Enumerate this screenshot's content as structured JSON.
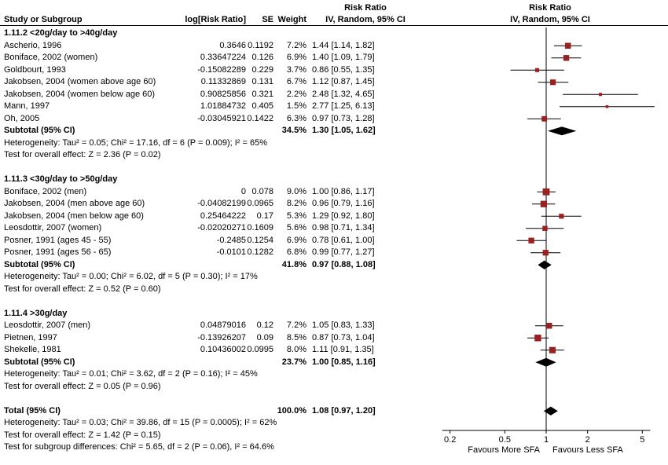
{
  "header": {
    "col_study": "Study or Subgroup",
    "col_logrr": "log[Risk Ratio]",
    "col_se": "SE",
    "col_weight": "Weight",
    "col_ci_line1": "Risk Ratio",
    "col_ci_line2": "IV, Random, 95% CI",
    "plot_line1": "Risk Ratio",
    "plot_line2": "IV, Random, 95% CI"
  },
  "chart_data": {
    "type": "forest",
    "x_scale": "log",
    "xlim": [
      0.2,
      5
    ],
    "axis_ticks": [
      0.2,
      0.5,
      1,
      2,
      5
    ],
    "axis_labels": [
      "0.2",
      "0.5",
      "1",
      "2",
      "5"
    ],
    "favours_left": "Favours More SFA",
    "favours_right": "Favours Less SFA",
    "marker_color": "#992121",
    "line_color": "#000000",
    "groups": [
      {
        "title": "1.11.2 <20g/day to >40g/day",
        "studies": [
          {
            "name": "Ascherio, 1996",
            "log_rr": "0.3646",
            "se": "0.1192",
            "weight": "7.2%",
            "ci": "1.44 [1.14, 1.82]",
            "rr": 1.44,
            "lo": 1.14,
            "hi": 1.82,
            "w": 7.2
          },
          {
            "name": "Boniface, 2002 (women)",
            "log_rr": "0.33647224",
            "se": "0.126",
            "weight": "6.9%",
            "ci": "1.40 [1.09, 1.79]",
            "rr": 1.4,
            "lo": 1.09,
            "hi": 1.79,
            "w": 6.9
          },
          {
            "name": "Goldbourt, 1993",
            "log_rr": "-0.15082289",
            "se": "0.229",
            "weight": "3.7%",
            "ci": "0.86 [0.55, 1.35]",
            "rr": 0.86,
            "lo": 0.55,
            "hi": 1.35,
            "w": 3.7
          },
          {
            "name": "Jakobsen, 2004 (women above age 60)",
            "log_rr": "0.11332869",
            "se": "0.131",
            "weight": "6.7%",
            "ci": "1.12 [0.87, 1.45]",
            "rr": 1.12,
            "lo": 0.87,
            "hi": 1.45,
            "w": 6.7
          },
          {
            "name": "Jakobsen, 2004 (women below age 60)",
            "log_rr": "0.90825856",
            "se": "0.321",
            "weight": "2.2%",
            "ci": "2.48 [1.32, 4.65]",
            "rr": 2.48,
            "lo": 1.32,
            "hi": 4.65,
            "w": 2.2
          },
          {
            "name": "Mann, 1997",
            "log_rr": "1.01884732",
            "se": "0.405",
            "weight": "1.5%",
            "ci": "2.77 [1.25, 6.13]",
            "rr": 2.77,
            "lo": 1.25,
            "hi": 6.13,
            "w": 1.5
          },
          {
            "name": "Oh, 2005",
            "log_rr": "-0.03045921",
            "se": "0.1422",
            "weight": "6.3%",
            "ci": "0.97 [0.73, 1.28]",
            "rr": 0.97,
            "lo": 0.73,
            "hi": 1.28,
            "w": 6.3
          }
        ],
        "subtotal": {
          "label": "Subtotal (95% CI)",
          "weight": "34.5%",
          "ci": "1.30 [1.05, 1.62]",
          "rr": 1.3,
          "lo": 1.05,
          "hi": 1.62
        },
        "heterogeneity": "Heterogeneity: Tau² = 0.05; Chi² = 17.16, df = 6 (P = 0.009); I² = 65%",
        "test": "Test for overall effect: Z = 2.36 (P = 0.02)"
      },
      {
        "title": "1.11.3 <30g/day to >50g/day",
        "studies": [
          {
            "name": "Boniface, 2002 (men)",
            "log_rr": "0",
            "se": "0.078",
            "weight": "9.0%",
            "ci": "1.00 [0.86, 1.17]",
            "rr": 1.0,
            "lo": 0.86,
            "hi": 1.17,
            "w": 9.0
          },
          {
            "name": "Jakobsen, 2004 (men above age 60)",
            "log_rr": "-0.04082199",
            "se": "0.0965",
            "weight": "8.2%",
            "ci": "0.96 [0.79, 1.16]",
            "rr": 0.96,
            "lo": 0.79,
            "hi": 1.16,
            "w": 8.2
          },
          {
            "name": "Jakobsen, 2004 (men below age 60)",
            "log_rr": "0.25464222",
            "se": "0.17",
            "weight": "5.3%",
            "ci": "1.29 [0.92, 1.80]",
            "rr": 1.29,
            "lo": 0.92,
            "hi": 1.8,
            "w": 5.3
          },
          {
            "name": "Leosdottir, 2007 (women)",
            "log_rr": "-0.02020271",
            "se": "0.1609",
            "weight": "5.6%",
            "ci": "0.98 [0.71, 1.34]",
            "rr": 0.98,
            "lo": 0.71,
            "hi": 1.34,
            "w": 5.6
          },
          {
            "name": "Posner, 1991 (ages 45 - 55)",
            "log_rr": "-0.2485",
            "se": "0.1254",
            "weight": "6.9%",
            "ci": "0.78 [0.61, 1.00]",
            "rr": 0.78,
            "lo": 0.61,
            "hi": 1.0,
            "w": 6.9
          },
          {
            "name": "Posner, 1991 (ages 56 - 65)",
            "log_rr": "-0.0101",
            "se": "0.1282",
            "weight": "6.8%",
            "ci": "0.99 [0.77, 1.27]",
            "rr": 0.99,
            "lo": 0.77,
            "hi": 1.27,
            "w": 6.8
          }
        ],
        "subtotal": {
          "label": "Subtotal (95% CI)",
          "weight": "41.8%",
          "ci": "0.97 [0.88, 1.08]",
          "rr": 0.97,
          "lo": 0.88,
          "hi": 1.08
        },
        "heterogeneity": "Heterogeneity: Tau² = 0.00; Chi² = 6.02, df = 5 (P = 0.30); I² = 17%",
        "test": "Test for overall effect: Z = 0.52 (P = 0.60)"
      },
      {
        "title": "1.11.4 >30g/day",
        "studies": [
          {
            "name": "Leosdottir, 2007 (men)",
            "log_rr": "0.04879016",
            "se": "0.12",
            "weight": "7.2%",
            "ci": "1.05 [0.83, 1.33]",
            "rr": 1.05,
            "lo": 0.83,
            "hi": 1.33,
            "w": 7.2
          },
          {
            "name": "Pietnen, 1997",
            "log_rr": "-0.13926207",
            "se": "0.09",
            "weight": "8.5%",
            "ci": "0.87 [0.73, 1.04]",
            "rr": 0.87,
            "lo": 0.73,
            "hi": 1.04,
            "w": 8.5
          },
          {
            "name": "Shekelle, 1981",
            "log_rr": "0.10436002",
            "se": "0.0995",
            "weight": "8.0%",
            "ci": "1.11 [0.91, 1.35]",
            "rr": 1.11,
            "lo": 0.91,
            "hi": 1.35,
            "w": 8.0
          }
        ],
        "subtotal": {
          "label": "Subtotal (95% CI)",
          "weight": "23.7%",
          "ci": "1.00 [0.85, 1.16]",
          "rr": 1.0,
          "lo": 0.85,
          "hi": 1.16
        },
        "heterogeneity": "Heterogeneity: Tau² = 0.01; Chi² = 3.62, df = 2 (P = 0.16); I² = 45%",
        "test": "Test for overall effect: Z = 0.05 (P = 0.96)"
      }
    ],
    "total": {
      "label": "Total (95% CI)",
      "weight": "100.0%",
      "ci": "1.08 [0.97, 1.20]",
      "rr": 1.08,
      "lo": 0.97,
      "hi": 1.2
    },
    "total_heterogeneity": "Heterogeneity: Tau² = 0.03; Chi² = 39.86, df = 15 (P = 0.0005); I² = 62%",
    "total_test": "Test for overall effect: Z = 1.42 (P = 0.15)",
    "subgroup_test": "Test for subgroup differences: Chi² = 5.65, df = 2 (P = 0.06), I² = 64.6%"
  }
}
